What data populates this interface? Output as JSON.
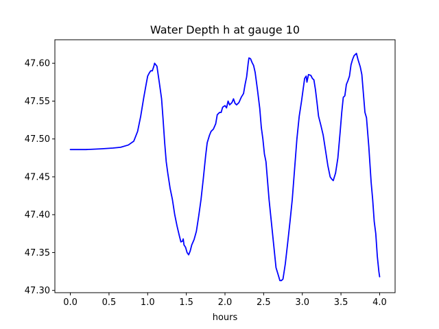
{
  "chart_data": {
    "type": "line",
    "title": "Water Depth h at gauge 10",
    "xlabel": "hours",
    "ylabel": "",
    "xlim": [
      -0.2,
      4.2
    ],
    "ylim": [
      47.297,
      47.631
    ],
    "x_ticks": [
      0.0,
      0.5,
      1.0,
      1.5,
      2.0,
      2.5,
      3.0,
      3.5,
      4.0
    ],
    "x_tick_labels": [
      "0.0",
      "0.5",
      "1.0",
      "1.5",
      "2.0",
      "2.5",
      "3.0",
      "3.5",
      "4.0"
    ],
    "y_ticks": [
      47.3,
      47.35,
      47.4,
      47.45,
      47.5,
      47.55,
      47.6
    ],
    "y_tick_labels": [
      "47.30",
      "47.35",
      "47.40",
      "47.45",
      "47.50",
      "47.55",
      "47.60"
    ],
    "grid": false,
    "legend": "none",
    "series": [
      {
        "color": "#0000ff",
        "points": [
          [
            0.0,
            47.486
          ],
          [
            0.2,
            47.486
          ],
          [
            0.4,
            47.487
          ],
          [
            0.55,
            47.488
          ],
          [
            0.65,
            47.489
          ],
          [
            0.75,
            47.492
          ],
          [
            0.82,
            47.497
          ],
          [
            0.87,
            47.51
          ],
          [
            0.91,
            47.53
          ],
          [
            0.95,
            47.555
          ],
          [
            0.98,
            47.572
          ],
          [
            1.0,
            47.583
          ],
          [
            1.02,
            47.587
          ],
          [
            1.04,
            47.59
          ],
          [
            1.06,
            47.59
          ],
          [
            1.08,
            47.596
          ],
          [
            1.09,
            47.6
          ],
          [
            1.12,
            47.596
          ],
          [
            1.15,
            47.575
          ],
          [
            1.18,
            47.553
          ],
          [
            1.2,
            47.525
          ],
          [
            1.22,
            47.495
          ],
          [
            1.24,
            47.47
          ],
          [
            1.26,
            47.455
          ],
          [
            1.29,
            47.435
          ],
          [
            1.32,
            47.42
          ],
          [
            1.35,
            47.4
          ],
          [
            1.38,
            47.385
          ],
          [
            1.41,
            47.372
          ],
          [
            1.43,
            47.364
          ],
          [
            1.45,
            47.365
          ],
          [
            1.46,
            47.368
          ],
          [
            1.47,
            47.36
          ],
          [
            1.49,
            47.357
          ],
          [
            1.51,
            47.35
          ],
          [
            1.53,
            47.347
          ],
          [
            1.55,
            47.352
          ],
          [
            1.57,
            47.36
          ],
          [
            1.6,
            47.367
          ],
          [
            1.63,
            47.378
          ],
          [
            1.66,
            47.398
          ],
          [
            1.69,
            47.42
          ],
          [
            1.72,
            47.448
          ],
          [
            1.75,
            47.478
          ],
          [
            1.77,
            47.495
          ],
          [
            1.8,
            47.505
          ],
          [
            1.82,
            47.51
          ],
          [
            1.85,
            47.513
          ],
          [
            1.88,
            47.52
          ],
          [
            1.9,
            47.532
          ],
          [
            1.93,
            47.535
          ],
          [
            1.95,
            47.535
          ],
          [
            1.97,
            47.542
          ],
          [
            2.0,
            47.544
          ],
          [
            2.02,
            47.541
          ],
          [
            2.04,
            47.55
          ],
          [
            2.06,
            47.545
          ],
          [
            2.09,
            47.548
          ],
          [
            2.11,
            47.553
          ],
          [
            2.13,
            47.547
          ],
          [
            2.15,
            47.545
          ],
          [
            2.18,
            47.548
          ],
          [
            2.21,
            47.555
          ],
          [
            2.24,
            47.56
          ],
          [
            2.26,
            47.572
          ],
          [
            2.28,
            47.582
          ],
          [
            2.3,
            47.6
          ],
          [
            2.31,
            47.607
          ],
          [
            2.33,
            47.606
          ],
          [
            2.35,
            47.601
          ],
          [
            2.37,
            47.597
          ],
          [
            2.39,
            47.588
          ],
          [
            2.42,
            47.565
          ],
          [
            2.45,
            47.54
          ],
          [
            2.47,
            47.515
          ],
          [
            2.49,
            47.5
          ],
          [
            2.51,
            47.48
          ],
          [
            2.53,
            47.47
          ],
          [
            2.55,
            47.445
          ],
          [
            2.57,
            47.42
          ],
          [
            2.6,
            47.39
          ],
          [
            2.63,
            47.36
          ],
          [
            2.66,
            47.33
          ],
          [
            2.69,
            47.32
          ],
          [
            2.71,
            47.313
          ],
          [
            2.73,
            47.313
          ],
          [
            2.75,
            47.315
          ],
          [
            2.78,
            47.335
          ],
          [
            2.81,
            47.362
          ],
          [
            2.84,
            47.39
          ],
          [
            2.87,
            47.42
          ],
          [
            2.9,
            47.46
          ],
          [
            2.93,
            47.5
          ],
          [
            2.96,
            47.53
          ],
          [
            2.99,
            47.55
          ],
          [
            3.01,
            47.565
          ],
          [
            3.03,
            47.58
          ],
          [
            3.05,
            47.583
          ],
          [
            3.06,
            47.575
          ],
          [
            3.08,
            47.585
          ],
          [
            3.11,
            47.584
          ],
          [
            3.13,
            47.58
          ],
          [
            3.15,
            47.578
          ],
          [
            3.17,
            47.565
          ],
          [
            3.19,
            47.548
          ],
          [
            3.21,
            47.53
          ],
          [
            3.24,
            47.518
          ],
          [
            3.27,
            47.505
          ],
          [
            3.3,
            47.485
          ],
          [
            3.33,
            47.465
          ],
          [
            3.36,
            47.45
          ],
          [
            3.38,
            47.447
          ],
          [
            3.4,
            47.445
          ],
          [
            3.43,
            47.455
          ],
          [
            3.46,
            47.475
          ],
          [
            3.49,
            47.51
          ],
          [
            3.51,
            47.535
          ],
          [
            3.53,
            47.555
          ],
          [
            3.55,
            47.557
          ],
          [
            3.57,
            47.572
          ],
          [
            3.59,
            47.577
          ],
          [
            3.61,
            47.583
          ],
          [
            3.63,
            47.598
          ],
          [
            3.65,
            47.605
          ],
          [
            3.67,
            47.61
          ],
          [
            3.7,
            47.613
          ],
          [
            3.72,
            47.605
          ],
          [
            3.75,
            47.595
          ],
          [
            3.77,
            47.585
          ],
          [
            3.79,
            47.56
          ],
          [
            3.81,
            47.535
          ],
          [
            3.83,
            47.528
          ],
          [
            3.86,
            47.49
          ],
          [
            3.89,
            47.443
          ],
          [
            3.91,
            47.42
          ],
          [
            3.93,
            47.391
          ],
          [
            3.95,
            47.375
          ],
          [
            3.97,
            47.345
          ],
          [
            3.99,
            47.325
          ],
          [
            4.0,
            47.318
          ]
        ]
      }
    ]
  }
}
